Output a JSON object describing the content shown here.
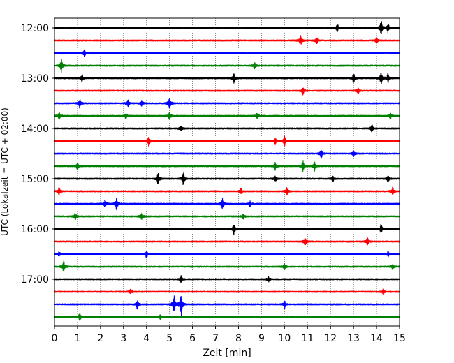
{
  "chart_data": {
    "type": "line",
    "title": "",
    "xlabel": "Zeit  [min]",
    "ylabel": "UTC (Lokalzeit = UTC + 02:00)",
    "xlim": [
      0,
      15
    ],
    "x_ticks": [
      "0",
      "1",
      "2",
      "3",
      "4",
      "5",
      "6",
      "7",
      "8",
      "9",
      "10",
      "11",
      "12",
      "13",
      "14",
      "15"
    ],
    "y_ticks": [
      "12:00",
      "13:00",
      "14:00",
      "15:00",
      "16:00",
      "17:00"
    ],
    "grid": "vertical-dotted",
    "colors": [
      "#000000",
      "#ff0000",
      "#0000ff",
      "#008000"
    ],
    "trace_interval_min": 15,
    "series": [
      {
        "start": "12:00",
        "color": "#000000",
        "events": [
          [
            12.3,
            0.4
          ],
          [
            14.2,
            0.9
          ],
          [
            14.5,
            0.5
          ]
        ]
      },
      {
        "start": "12:15",
        "color": "#ff0000",
        "events": [
          [
            10.7,
            0.5
          ],
          [
            11.4,
            0.4
          ],
          [
            14.0,
            0.3
          ]
        ]
      },
      {
        "start": "12:30",
        "color": "#0000ff",
        "events": [
          [
            1.3,
            0.4
          ]
        ]
      },
      {
        "start": "12:45",
        "color": "#008000",
        "events": [
          [
            0.3,
            0.7
          ],
          [
            8.7,
            0.3
          ]
        ]
      },
      {
        "start": "13:00",
        "color": "#000000",
        "events": [
          [
            1.2,
            0.4
          ],
          [
            7.8,
            0.6
          ],
          [
            13.0,
            0.5
          ],
          [
            14.2,
            0.7
          ],
          [
            14.5,
            0.5
          ]
        ]
      },
      {
        "start": "13:15",
        "color": "#ff0000",
        "events": [
          [
            10.8,
            0.4
          ],
          [
            13.2,
            0.3
          ]
        ]
      },
      {
        "start": "13:30",
        "color": "#0000ff",
        "events": [
          [
            1.1,
            0.5
          ],
          [
            3.2,
            0.4
          ],
          [
            3.8,
            0.4
          ],
          [
            5.0,
            0.7
          ]
        ]
      },
      {
        "start": "13:45",
        "color": "#008000",
        "events": [
          [
            0.2,
            0.4
          ],
          [
            3.1,
            0.3
          ],
          [
            5.0,
            0.4
          ],
          [
            8.8,
            0.3
          ],
          [
            14.6,
            0.3
          ]
        ]
      },
      {
        "start": "14:00",
        "color": "#000000",
        "events": [
          [
            5.5,
            0.3
          ],
          [
            13.8,
            0.4
          ]
        ]
      },
      {
        "start": "14:15",
        "color": "#ff0000",
        "events": [
          [
            4.1,
            0.6
          ],
          [
            9.6,
            0.3
          ],
          [
            10.0,
            0.5
          ]
        ]
      },
      {
        "start": "14:30",
        "color": "#0000ff",
        "events": [
          [
            11.6,
            0.5
          ],
          [
            13.0,
            0.3
          ]
        ]
      },
      {
        "start": "14:45",
        "color": "#008000",
        "events": [
          [
            1.0,
            0.4
          ],
          [
            9.6,
            0.4
          ],
          [
            10.8,
            0.6
          ],
          [
            11.3,
            0.5
          ]
        ]
      },
      {
        "start": "15:00",
        "color": "#000000",
        "events": [
          [
            4.5,
            0.6
          ],
          [
            5.6,
            0.7
          ],
          [
            9.6,
            0.3
          ],
          [
            12.1,
            0.3
          ],
          [
            14.5,
            0.3
          ]
        ]
      },
      {
        "start": "15:15",
        "color": "#ff0000",
        "events": [
          [
            0.2,
            0.4
          ],
          [
            8.1,
            0.3
          ],
          [
            10.1,
            0.4
          ],
          [
            14.7,
            0.4
          ]
        ]
      },
      {
        "start": "15:30",
        "color": "#0000ff",
        "events": [
          [
            2.2,
            0.4
          ],
          [
            2.7,
            0.6
          ],
          [
            7.3,
            0.6
          ],
          [
            8.5,
            0.3
          ]
        ]
      },
      {
        "start": "15:45",
        "color": "#008000",
        "events": [
          [
            0.9,
            0.4
          ],
          [
            3.8,
            0.4
          ],
          [
            8.2,
            0.3
          ]
        ]
      },
      {
        "start": "16:00",
        "color": "#000000",
        "events": [
          [
            7.8,
            0.6
          ],
          [
            14.2,
            0.5
          ]
        ]
      },
      {
        "start": "16:15",
        "color": "#ff0000",
        "events": [
          [
            10.9,
            0.4
          ],
          [
            13.6,
            0.4
          ]
        ]
      },
      {
        "start": "16:30",
        "color": "#0000ff",
        "events": [
          [
            0.2,
            0.3
          ],
          [
            4.0,
            0.4
          ],
          [
            14.5,
            0.3
          ]
        ]
      },
      {
        "start": "16:45",
        "color": "#008000",
        "events": [
          [
            0.4,
            0.6
          ],
          [
            10.0,
            0.3
          ],
          [
            14.7,
            0.3
          ]
        ]
      },
      {
        "start": "17:00",
        "color": "#000000",
        "events": [
          [
            5.5,
            0.4
          ],
          [
            9.3,
            0.3
          ]
        ]
      },
      {
        "start": "17:15",
        "color": "#ff0000",
        "events": [
          [
            3.3,
            0.3
          ],
          [
            14.3,
            0.3
          ]
        ]
      },
      {
        "start": "17:30",
        "color": "#0000ff",
        "events": [
          [
            3.6,
            0.5
          ],
          [
            5.2,
            1.0
          ],
          [
            5.5,
            1.4
          ],
          [
            10.0,
            0.4
          ]
        ]
      },
      {
        "start": "17:45",
        "color": "#008000",
        "events": [
          [
            1.1,
            0.4
          ],
          [
            4.6,
            0.3
          ]
        ]
      }
    ]
  }
}
